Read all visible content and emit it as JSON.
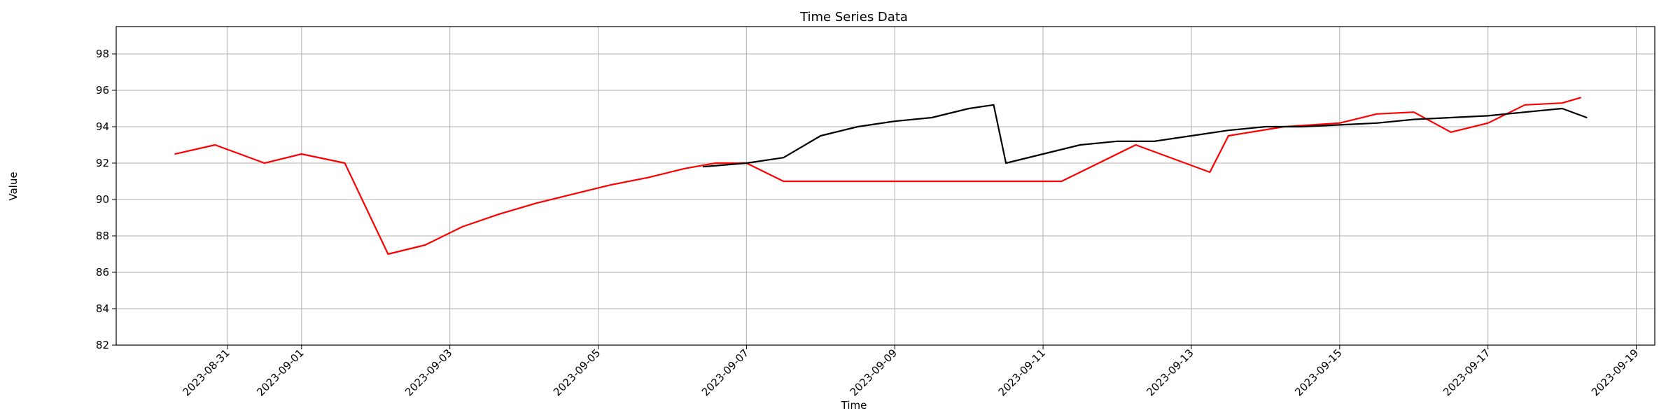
{
  "chart_data": {
    "type": "line",
    "title": "Time Series Data",
    "xlabel": "Time",
    "ylabel": "Value",
    "xlim": [
      "2023-08-29T12:00",
      "2023-09-19T06:00"
    ],
    "ylim": [
      82,
      99.5
    ],
    "grid": true,
    "x_ticks": [
      "2023-08-31",
      "2023-09-01",
      "2023-09-03",
      "2023-09-05",
      "2023-09-07",
      "2023-09-09",
      "2023-09-11",
      "2023-09-13",
      "2023-09-15",
      "2023-09-17",
      "2023-09-19"
    ],
    "y_ticks": [
      82,
      84,
      86,
      88,
      90,
      92,
      94,
      96,
      98
    ],
    "colors": {
      "series_a": "#ff0000",
      "series_b": "#000000"
    },
    "series": [
      {
        "color": "#ff0000",
        "x": [
          "2023-08-30T07:00",
          "2023-08-30T20:00",
          "2023-08-31T12:00",
          "2023-09-01T00:00",
          "2023-09-01T14:00",
          "2023-09-02T04:00",
          "2023-09-02T16:00",
          "2023-09-03T04:00",
          "2023-09-03T16:00",
          "2023-09-04T04:00",
          "2023-09-04T16:00",
          "2023-09-05T04:00",
          "2023-09-05T16:00",
          "2023-09-06T04:00",
          "2023-09-06T14:00",
          "2023-09-07T00:00",
          "2023-09-07T12:00",
          "2023-09-11T06:00",
          "2023-09-12T06:00",
          "2023-09-13T06:00",
          "2023-09-13T12:00",
          "2023-09-14T06:00",
          "2023-09-15T00:00",
          "2023-09-15T12:00",
          "2023-09-16T00:00",
          "2023-09-16T12:00",
          "2023-09-17T00:00",
          "2023-09-17T12:00",
          "2023-09-18T00:00",
          "2023-09-18T06:00"
        ],
        "y": [
          92.5,
          93.0,
          92.0,
          92.5,
          92.0,
          87.0,
          87.5,
          88.5,
          89.2,
          89.8,
          90.3,
          90.8,
          91.2,
          91.7,
          92.0,
          92.0,
          91.0,
          91.0,
          93.0,
          91.5,
          93.5,
          94.0,
          94.2,
          94.7,
          94.8,
          93.7,
          94.2,
          95.2,
          95.3,
          95.6
        ]
      },
      {
        "color": "#000000",
        "x": [
          "2023-09-06T10:00",
          "2023-09-07T00:00",
          "2023-09-07T12:00",
          "2023-09-08T00:00",
          "2023-09-08T12:00",
          "2023-09-09T00:00",
          "2023-09-09T12:00",
          "2023-09-10T00:00",
          "2023-09-10T08:00",
          "2023-09-10T12:00",
          "2023-09-11T00:00",
          "2023-09-11T12:00",
          "2023-09-12T00:00",
          "2023-09-12T12:00",
          "2023-09-13T00:00",
          "2023-09-13T12:00",
          "2023-09-14T00:00",
          "2023-09-14T12:00",
          "2023-09-15T00:00",
          "2023-09-15T12:00",
          "2023-09-16T00:00",
          "2023-09-16T12:00",
          "2023-09-17T00:00",
          "2023-09-17T12:00",
          "2023-09-18T00:00",
          "2023-09-18T08:00"
        ],
        "y": [
          91.8,
          92.0,
          92.3,
          93.5,
          94.0,
          94.3,
          94.5,
          95.0,
          95.2,
          92.0,
          92.5,
          93.0,
          93.2,
          93.2,
          93.5,
          93.8,
          94.0,
          94.0,
          94.1,
          94.2,
          94.4,
          94.5,
          94.6,
          94.8,
          95.0,
          94.5
        ]
      }
    ]
  }
}
